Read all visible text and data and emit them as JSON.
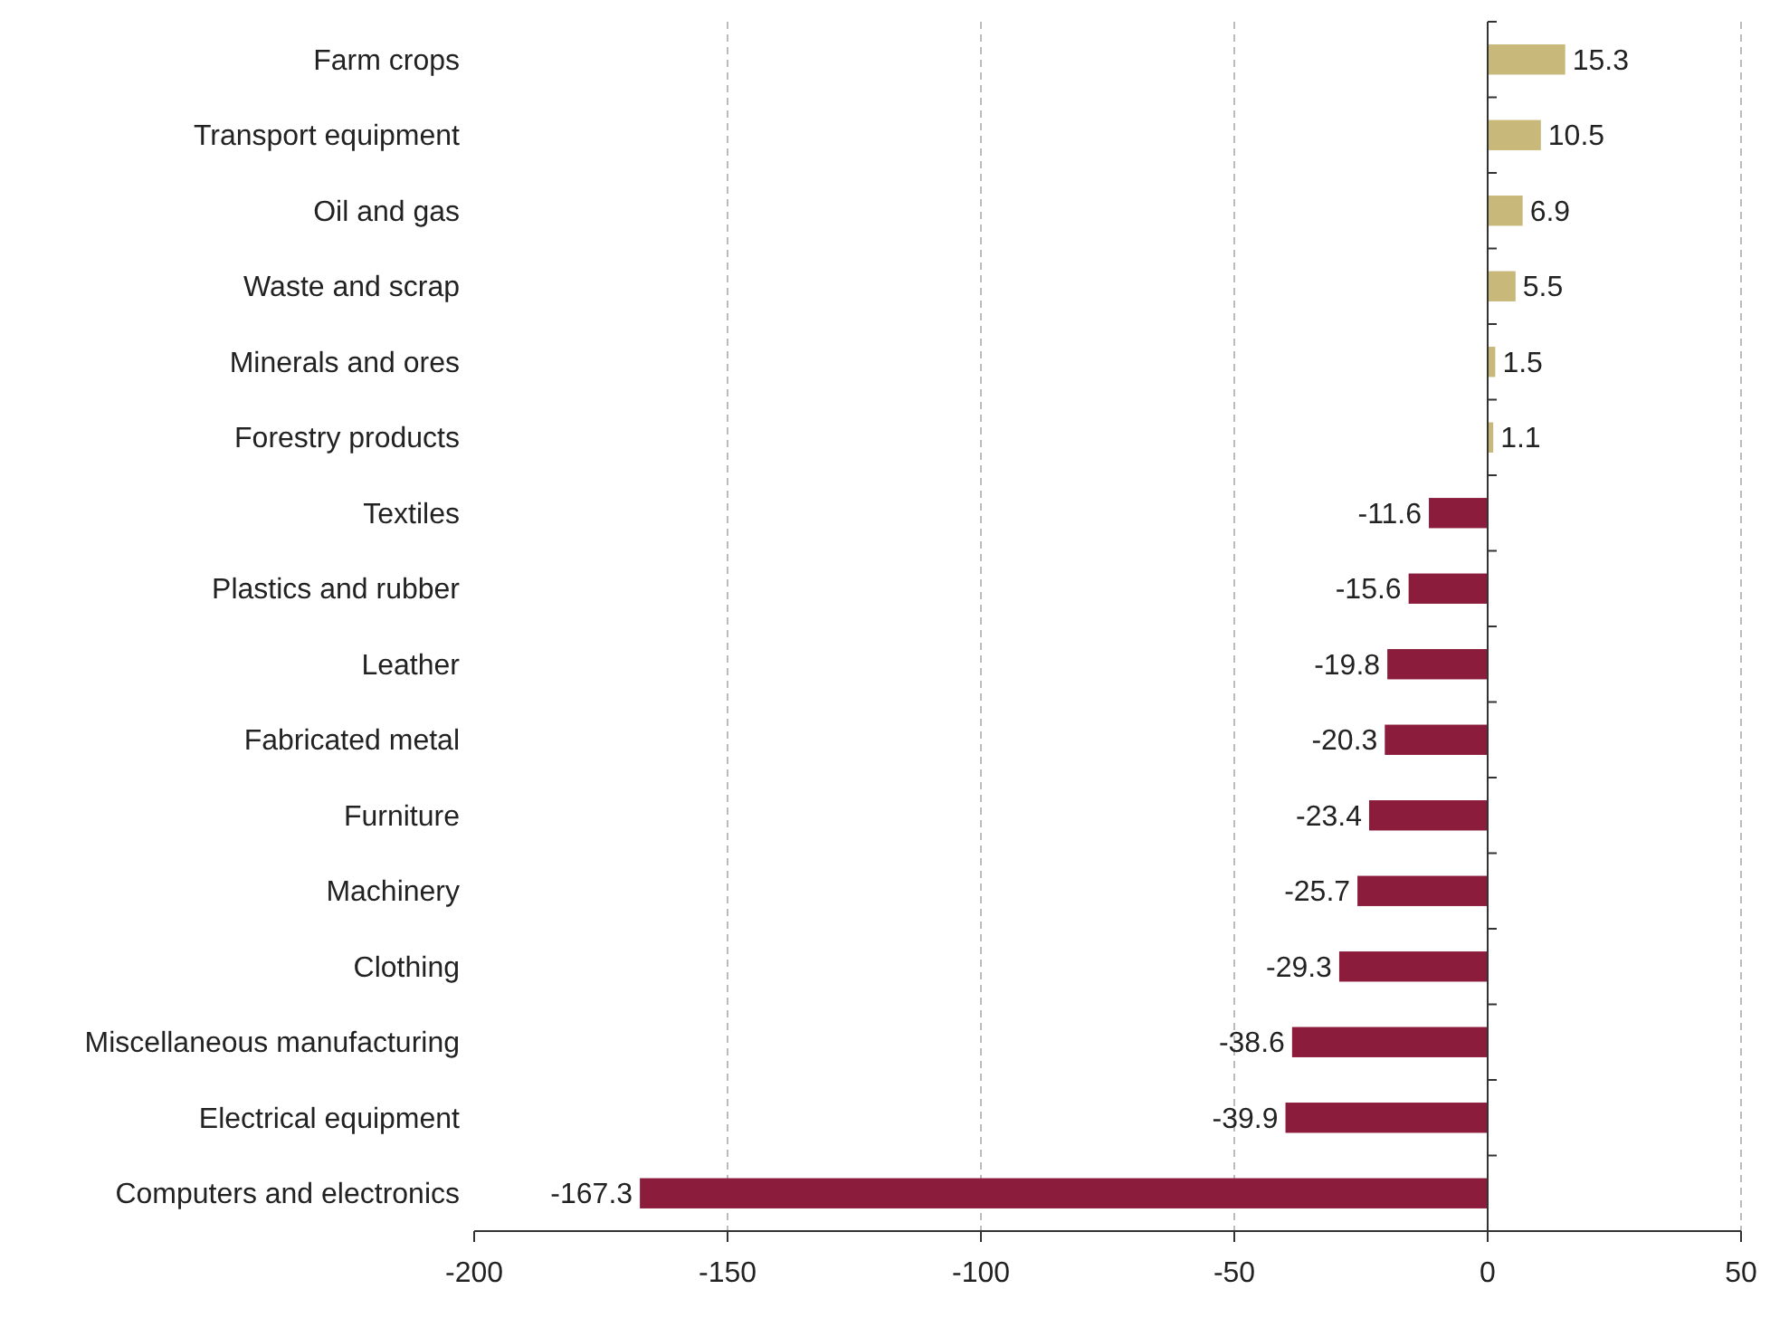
{
  "chart_data": {
    "type": "bar",
    "orientation": "horizontal",
    "categories": [
      "Farm crops",
      "Transport equipment",
      "Oil and gas",
      "Waste and scrap",
      "Minerals and ores",
      "Forestry products",
      "Textiles",
      "Plastics and rubber",
      "Leather",
      "Fabricated metal",
      "Furniture",
      "Machinery",
      "Clothing",
      "Miscellaneous manufacturing",
      "Electrical equipment",
      "Computers and electronics"
    ],
    "values": [
      15.3,
      10.5,
      6.9,
      5.5,
      1.5,
      1.1,
      -11.6,
      -15.6,
      -19.8,
      -20.3,
      -23.4,
      -25.7,
      -29.3,
      -38.6,
      -39.9,
      -167.3
    ],
    "colors": [
      "#c8b97a",
      "#c8b97a",
      "#c8b97a",
      "#c8b97a",
      "#c8b97a",
      "#c8b97a",
      "#8c1c3c",
      "#8c1c3c",
      "#8c1c3c",
      "#8c1c3c",
      "#8c1c3c",
      "#8c1c3c",
      "#8c1c3c",
      "#8c1c3c",
      "#8c1c3c",
      "#8c1c3c"
    ],
    "xlim": [
      -200,
      50
    ],
    "xticks": [
      -200,
      -150,
      -100,
      -50,
      0,
      50
    ],
    "grid": "x",
    "data_labels": true
  }
}
